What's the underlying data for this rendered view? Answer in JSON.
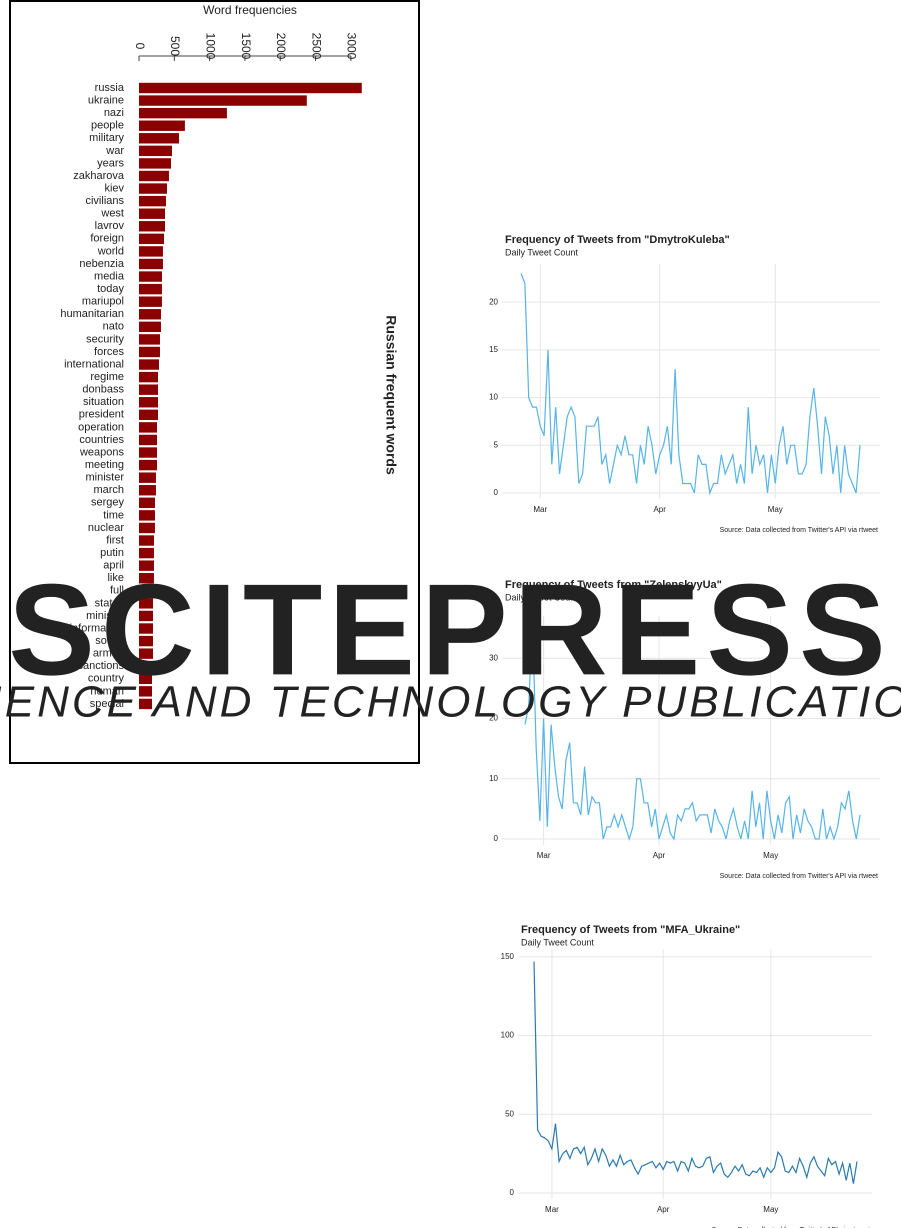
{
  "chart_data": [
    {
      "type": "hbar",
      "xlabel": "Word frequencies",
      "ylabel": "Russian frequent words",
      "color": "#8b0000",
      "categories": [
        "russia",
        "ukraine",
        "nazi",
        "people",
        "military",
        "war",
        "years",
        "zakharova",
        "kiev",
        "civilians",
        "west",
        "lavrov",
        "foreign",
        "world",
        "nebenzia",
        "media",
        "today",
        "mariupol",
        "humanitarian",
        "nato",
        "security",
        "forces",
        "international",
        "regime",
        "donbass",
        "situation",
        "president",
        "operation",
        "countries",
        "weapons",
        "meeting",
        "minister",
        "march",
        "sergey",
        "time",
        "nuclear",
        "first",
        "putin",
        "april",
        "like",
        "full",
        "states",
        "ministry",
        "information",
        "soviet",
        "armed",
        "sanctions",
        "country",
        "human",
        "special"
      ],
      "values": [
        3154,
        2376,
        1245,
        650,
        566,
        467,
        453,
        424,
        396,
        382,
        368,
        368,
        354,
        339,
        339,
        325,
        325,
        325,
        311,
        311,
        297,
        297,
        283,
        269,
        269,
        269,
        269,
        255,
        255,
        255,
        255,
        240,
        240,
        226,
        226,
        226,
        212,
        212,
        212,
        212,
        198,
        198,
        198,
        198,
        198,
        198,
        184,
        184,
        184,
        184
      ],
      "xlim": [
        0,
        3200
      ],
      "xticks": [
        0,
        500,
        1000,
        1500,
        2000,
        2500,
        3000
      ]
    },
    {
      "type": "line",
      "title": "Frequency of Tweets from \"DmytroKuleba\"",
      "subtitle": "Daily Tweet Count",
      "caption": "Source: Data collected from Twitter's API via rtweet",
      "color": "#56b4e9",
      "grid": true,
      "values": [
        23,
        22,
        10,
        9,
        9,
        7,
        6,
        15,
        3,
        9,
        2,
        5,
        8,
        9,
        8,
        1,
        2,
        7,
        7,
        7,
        8,
        3,
        4,
        1,
        3,
        5,
        4,
        6,
        4,
        4,
        1,
        5,
        3,
        7,
        5,
        2,
        4,
        5,
        7,
        3,
        13,
        4,
        1,
        1,
        1,
        0,
        4,
        3,
        3,
        0,
        1,
        1,
        4,
        2,
        3,
        4,
        1,
        3,
        1,
        9,
        2,
        5,
        3,
        4,
        0,
        4,
        1,
        5,
        7,
        3,
        5,
        5,
        2,
        2,
        3,
        8,
        11,
        7,
        2,
        8,
        6,
        2,
        5,
        0,
        5,
        2,
        1,
        0,
        5
      ],
      "xlim": [
        0,
        88
      ],
      "xticks": [
        {
          "value": 5,
          "label": "Mar"
        },
        {
          "value": 36,
          "label": "Apr"
        },
        {
          "value": 66,
          "label": "May"
        }
      ],
      "ylim": [
        0,
        24
      ],
      "yticks": [
        0,
        5,
        10,
        15,
        20
      ]
    },
    {
      "type": "line",
      "title": "Frequency of Tweets from \"ZelenskyyUa\"",
      "subtitle": "Daily Tweet Count",
      "caption": "Source: Data collected from Twitter's API via rtweet",
      "color": "#56b4e9",
      "grid": true,
      "values": [
        19,
        22,
        36,
        15,
        3,
        20,
        2,
        19,
        12,
        7,
        5,
        13,
        16,
        6,
        6,
        4,
        12,
        4,
        7,
        6,
        6,
        0,
        2,
        2,
        4,
        2,
        4,
        2,
        0,
        2,
        10,
        10,
        6,
        6,
        2,
        5,
        0,
        2,
        4,
        1,
        0,
        4,
        3,
        5,
        5,
        6,
        3,
        4,
        4,
        4,
        1,
        5,
        3,
        2,
        0,
        3,
        5,
        2,
        0,
        3,
        0,
        8,
        2,
        6,
        0,
        8,
        3,
        0,
        4,
        1,
        6,
        7,
        0,
        4,
        1,
        5,
        3,
        2,
        0,
        0,
        5,
        0,
        2,
        0,
        2,
        6,
        5,
        8,
        3,
        0,
        4
      ],
      "xlim": [
        0,
        90
      ],
      "xticks": [
        {
          "value": 5,
          "label": "Mar"
        },
        {
          "value": 36,
          "label": "Apr"
        },
        {
          "value": 66,
          "label": "May"
        }
      ],
      "ylim": [
        0,
        37
      ],
      "yticks": [
        0,
        10,
        20,
        30
      ]
    },
    {
      "type": "line",
      "title": "Frequency of Tweets from \"MFA_Ukraine\"",
      "subtitle": "Daily Tweet Count",
      "caption": "Source: Data collected from Twitter's API via rtweet",
      "color": "#2a7ab0",
      "grid": true,
      "values": [
        147,
        40,
        36,
        35,
        33,
        28,
        44,
        20,
        25,
        27,
        22,
        28,
        29,
        25,
        29,
        18,
        22,
        28,
        20,
        28,
        24,
        17,
        21,
        17,
        24,
        18,
        20,
        21,
        16,
        12,
        17,
        18,
        19,
        20,
        16,
        19,
        15,
        20,
        19,
        20,
        14,
        20,
        19,
        14,
        22,
        17,
        16,
        17,
        22,
        23,
        13,
        17,
        19,
        12,
        10,
        13,
        17,
        14,
        18,
        12,
        11,
        14,
        13,
        16,
        10,
        16,
        13,
        16,
        26,
        23,
        14,
        13,
        17,
        13,
        22,
        17,
        10,
        19,
        23,
        17,
        14,
        11,
        22,
        18,
        20,
        12,
        19,
        8,
        19,
        6,
        20
      ],
      "xlim": [
        0,
        90
      ],
      "xticks": [
        {
          "value": 5,
          "label": "Mar"
        },
        {
          "value": 36,
          "label": "Apr"
        },
        {
          "value": 66,
          "label": "May"
        }
      ],
      "ylim": [
        0,
        155
      ],
      "yticks": [
        0,
        50,
        100,
        150
      ]
    }
  ],
  "watermark": {
    "title": "SCITEPRESS",
    "subtitle": "SCIENCE AND TECHNOLOGY PUBLICATIONS"
  }
}
